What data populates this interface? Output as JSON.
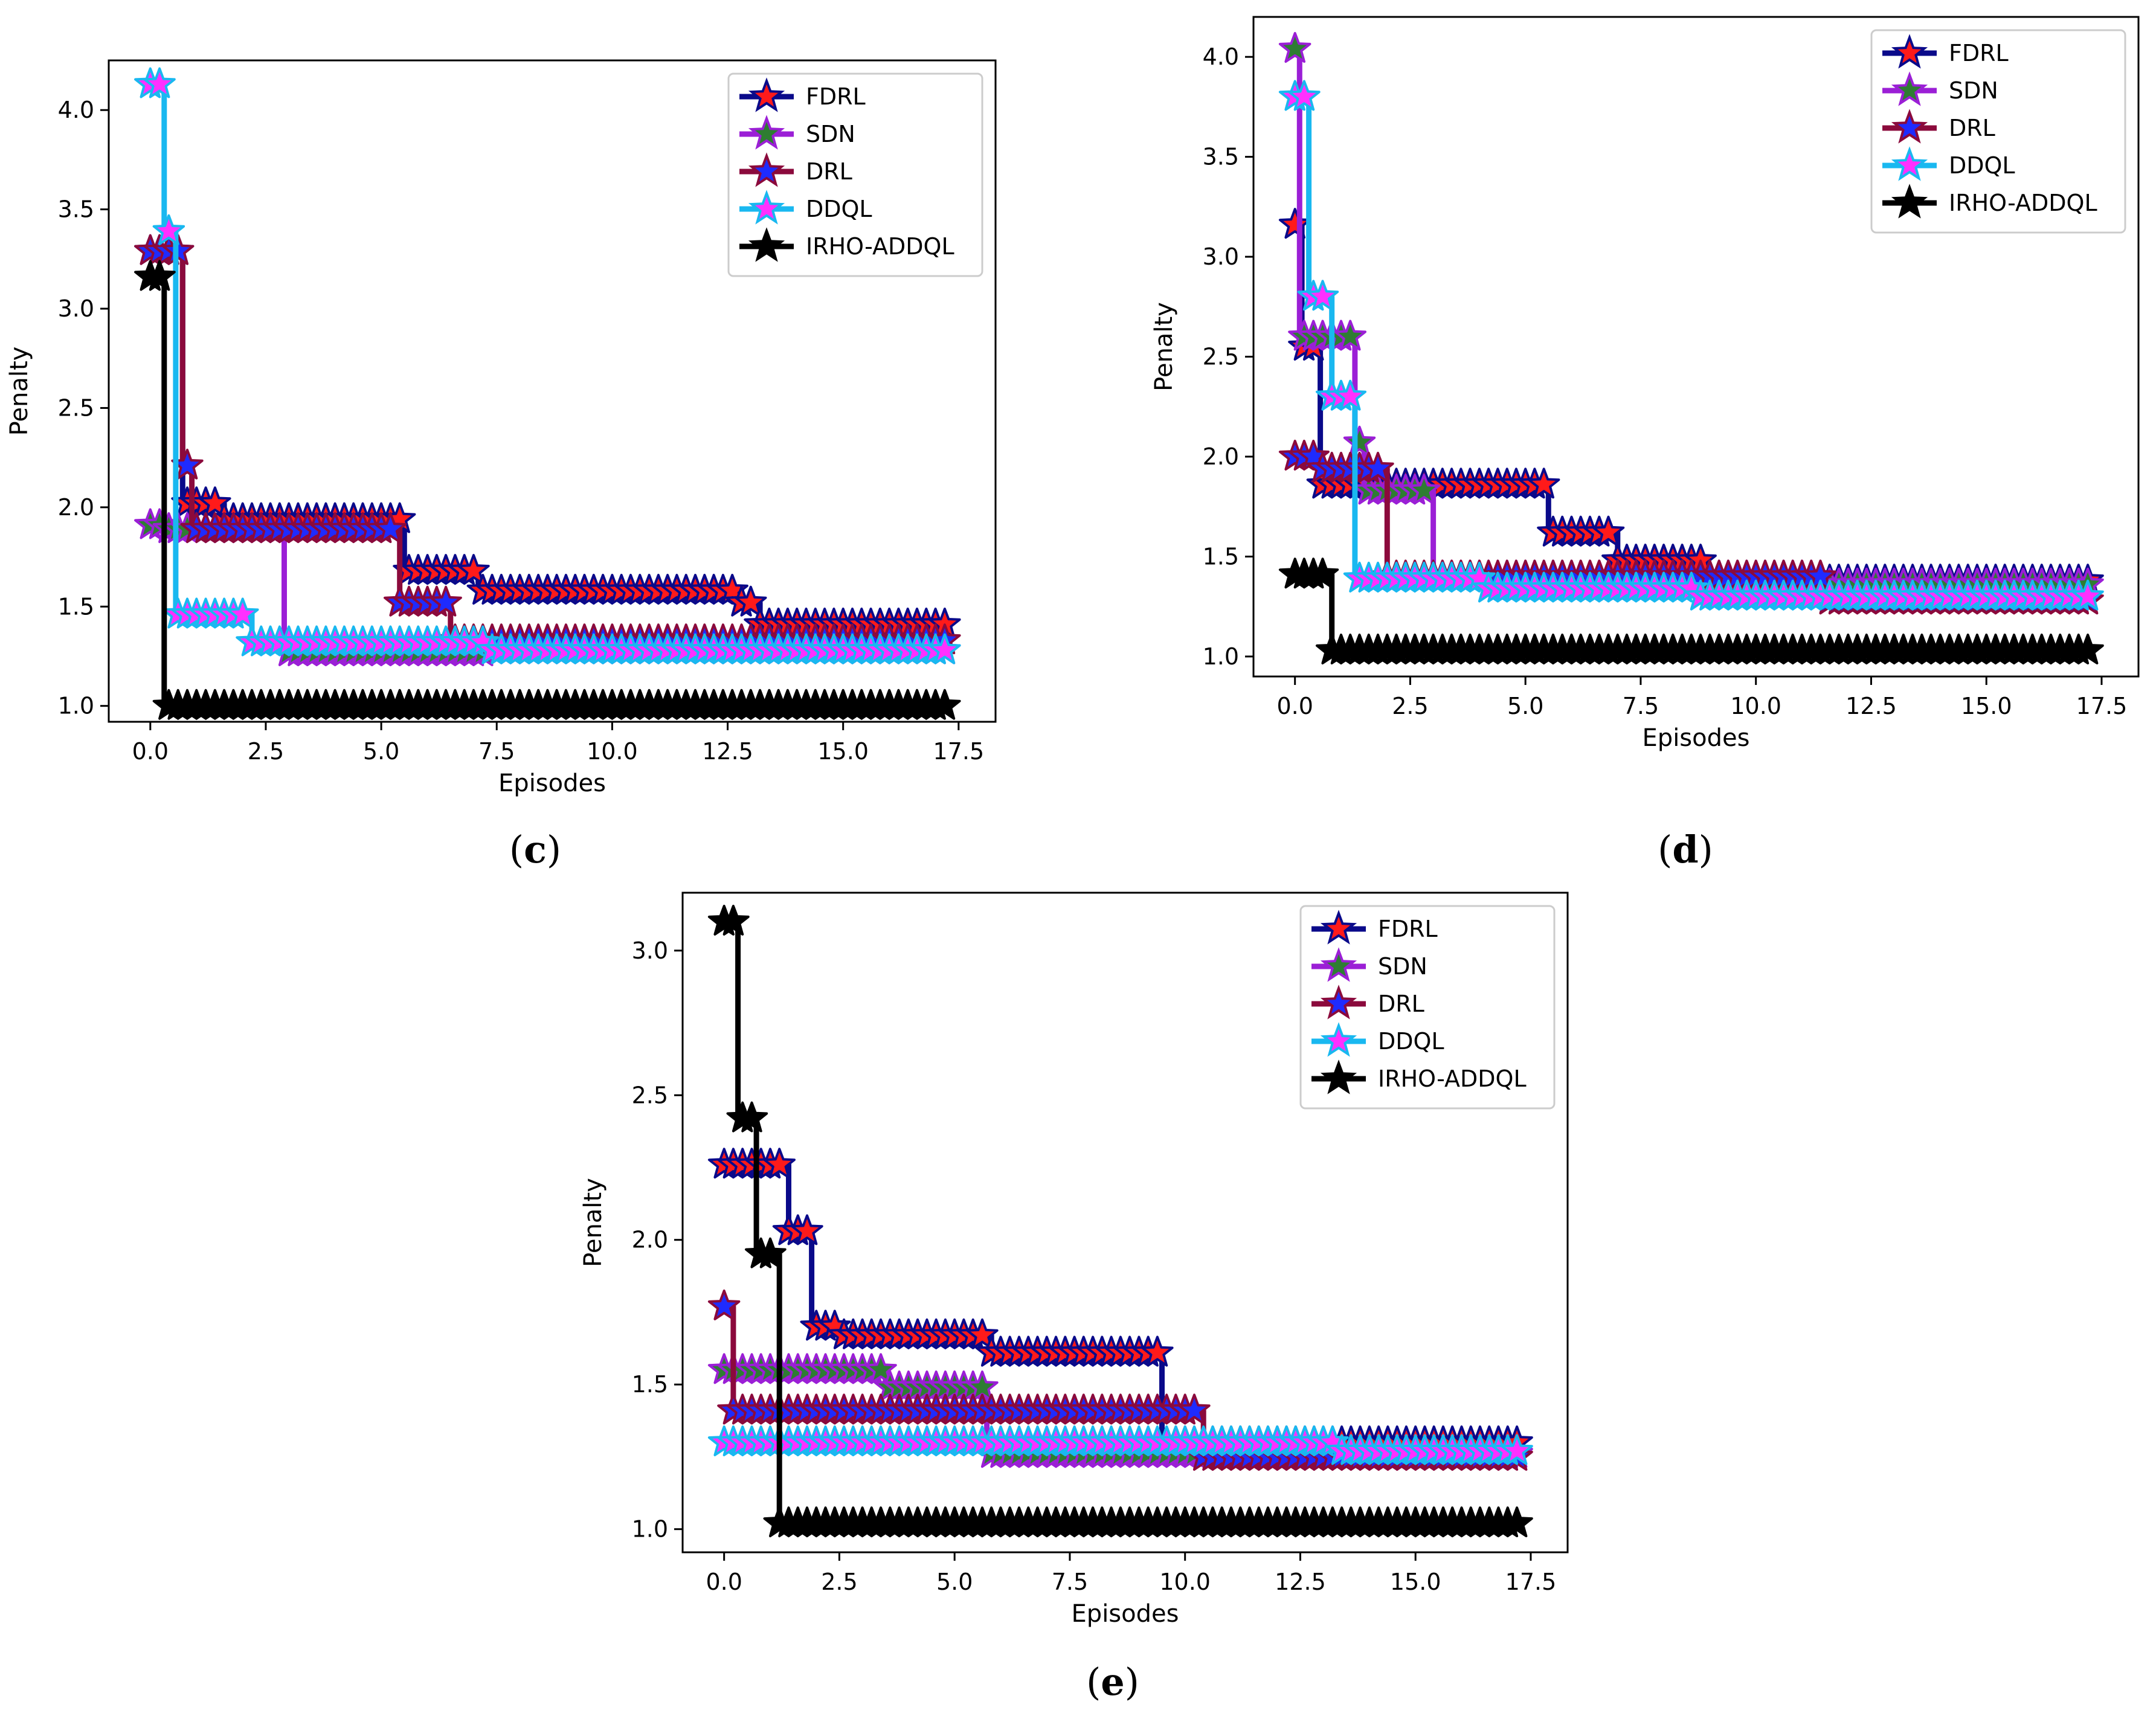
{
  "figure": {
    "captions": {
      "c": {
        "open": "(",
        "letter": "c",
        "close": ")"
      },
      "d": {
        "open": "(",
        "letter": "d",
        "close": ")"
      },
      "e": {
        "open": "(",
        "letter": "e",
        "close": ")"
      }
    }
  },
  "series_style": {
    "FDRL": {
      "line": "#0a0a8a",
      "marker_face": "#ff1a1a",
      "marker_edge": "#0a0a8a"
    },
    "SDN": {
      "line": "#9b1fd6",
      "marker_face": "#2e7d32",
      "marker_edge": "#9b1fd6"
    },
    "DRL": {
      "line": "#8b0a3c",
      "marker_face": "#1f2bff",
      "marker_edge": "#8b0a3c"
    },
    "DDQL": {
      "line": "#19b8f0",
      "marker_face": "#ff30ff",
      "marker_edge": "#19b8f0"
    },
    "IRHO-ADDQL": {
      "line": "#000000",
      "marker_face": "#000000",
      "marker_edge": "#000000"
    }
  },
  "chart_data": [
    {
      "id": "c",
      "type": "line",
      "title": "",
      "xlabel": "Episodes",
      "ylabel": "Penalty",
      "xlim": [
        -0.9,
        18.3
      ],
      "ylim": [
        0.92,
        4.25
      ],
      "xticks": [
        0.0,
        2.5,
        5.0,
        7.5,
        10.0,
        12.5,
        15.0,
        17.5
      ],
      "xtick_labels": [
        "0.0",
        "2.5",
        "5.0",
        "7.5",
        "10.0",
        "12.5",
        "15.0",
        "17.5"
      ],
      "yticks": [
        1.0,
        1.5,
        2.0,
        2.5,
        3.0,
        3.5,
        4.0
      ],
      "ytick_labels": [
        "1.0",
        "1.5",
        "2.0",
        "2.5",
        "3.0",
        "3.5",
        "4.0"
      ],
      "legend": [
        "FDRL",
        "SDN",
        "DRL",
        "DDQL",
        "IRHO-ADDQL"
      ],
      "legend_position": "upper-right",
      "series": [
        {
          "name": "FDRL",
          "steps": [
            [
              0,
              3.29
            ],
            [
              0.7,
              2.02
            ],
            [
              1.6,
              1.94
            ],
            [
              5.5,
              1.68
            ],
            [
              7.1,
              1.58
            ],
            [
              12.8,
              1.52
            ],
            [
              13.2,
              1.41
            ]
          ]
        },
        {
          "name": "SDN",
          "steps": [
            [
              0,
              1.91
            ],
            [
              0.35,
              1.89
            ],
            [
              2.9,
              1.27
            ],
            [
              7.3,
              1.28
            ]
          ]
        },
        {
          "name": "DRL",
          "steps": [
            [
              0,
              3.29
            ],
            [
              0.7,
              2.21
            ],
            [
              0.9,
              1.89
            ],
            [
              5.4,
              1.52
            ],
            [
              6.5,
              1.33
            ]
          ]
        },
        {
          "name": "DDQL",
          "steps": [
            [
              0,
              4.13
            ],
            [
              0.3,
              3.39
            ],
            [
              0.55,
              1.46
            ],
            [
              2.2,
              1.32
            ],
            [
              7.3,
              1.28
            ]
          ]
        },
        {
          "name": "IRHO-ADDQL",
          "steps": [
            [
              0,
              3.16
            ],
            [
              0.3,
              1.0
            ]
          ]
        }
      ],
      "x_end": 17.2
    },
    {
      "id": "d",
      "type": "line",
      "title": "",
      "xlabel": "Episodes",
      "ylabel": "Penalty",
      "xlim": [
        -0.9,
        18.3
      ],
      "ylim": [
        0.9,
        4.2
      ],
      "xticks": [
        0.0,
        2.5,
        5.0,
        7.5,
        10.0,
        12.5,
        15.0,
        17.5
      ],
      "xtick_labels": [
        "0.0",
        "2.5",
        "5.0",
        "7.5",
        "10.0",
        "12.5",
        "15.0",
        "17.5"
      ],
      "yticks": [
        1.0,
        1.5,
        2.0,
        2.5,
        3.0,
        3.5,
        4.0
      ],
      "ytick_labels": [
        "1.0",
        "1.5",
        "2.0",
        "2.5",
        "3.0",
        "3.5",
        "4.0"
      ],
      "legend": [
        "FDRL",
        "SDN",
        "DRL",
        "DDQL",
        "IRHO-ADDQL"
      ],
      "legend_position": "upper-right",
      "series": [
        {
          "name": "FDRL",
          "steps": [
            [
              0,
              3.16
            ],
            [
              0.15,
              2.55
            ],
            [
              0.55,
              1.86
            ],
            [
              5.5,
              1.62
            ],
            [
              7.0,
              1.48
            ],
            [
              8.9,
              1.38
            ]
          ]
        },
        {
          "name": "SDN",
          "steps": [
            [
              0,
              4.04
            ],
            [
              0.1,
              2.6
            ],
            [
              1.3,
              2.07
            ],
            [
              1.5,
              1.83
            ],
            [
              3.0,
              1.4
            ],
            [
              11.5,
              1.36
            ]
          ]
        },
        {
          "name": "DRL",
          "steps": [
            [
              0,
              2.0
            ],
            [
              0.55,
              1.94
            ],
            [
              2.0,
              1.4
            ],
            [
              11.5,
              1.28
            ]
          ]
        },
        {
          "name": "DDQL",
          "steps": [
            [
              0,
              3.8
            ],
            [
              0.3,
              2.8
            ],
            [
              0.8,
              2.3
            ],
            [
              1.3,
              1.39
            ],
            [
              4.2,
              1.34
            ],
            [
              8.7,
              1.3
            ]
          ]
        },
        {
          "name": "IRHO-ADDQL",
          "steps": [
            [
              0,
              1.41
            ],
            [
              0.8,
              1.03
            ]
          ]
        }
      ],
      "x_end": 17.2
    },
    {
      "id": "e",
      "type": "line",
      "title": "",
      "xlabel": "Episodes",
      "ylabel": "Penalty",
      "xlim": [
        -0.9,
        18.3
      ],
      "ylim": [
        0.92,
        3.2
      ],
      "xticks": [
        0.0,
        2.5,
        5.0,
        7.5,
        10.0,
        12.5,
        15.0,
        17.5
      ],
      "xtick_labels": [
        "0.0",
        "2.5",
        "5.0",
        "7.5",
        "10.0",
        "12.5",
        "15.0",
        "17.5"
      ],
      "yticks": [
        1.0,
        1.5,
        2.0,
        2.5,
        3.0
      ],
      "ytick_labels": [
        "1.0",
        "1.5",
        "2.0",
        "2.5",
        "3.0"
      ],
      "legend": [
        "FDRL",
        "SDN",
        "DRL",
        "DDQL",
        "IRHO-ADDQL"
      ],
      "legend_position": "upper-right",
      "series": [
        {
          "name": "FDRL",
          "steps": [
            [
              0,
              2.26
            ],
            [
              1.4,
              2.03
            ],
            [
              1.9,
              1.7
            ],
            [
              2.5,
              1.67
            ],
            [
              5.8,
              1.61
            ],
            [
              9.5,
              1.3
            ]
          ]
        },
        {
          "name": "SDN",
          "steps": [
            [
              0,
              1.55
            ],
            [
              3.5,
              1.49
            ],
            [
              5.7,
              1.26
            ]
          ]
        },
        {
          "name": "DRL",
          "steps": [
            [
              0,
              1.77
            ],
            [
              0.2,
              1.41
            ],
            [
              10.4,
              1.25
            ]
          ]
        },
        {
          "name": "DDQL",
          "steps": [
            [
              0,
              1.3
            ],
            [
              13.4,
              1.27
            ]
          ]
        },
        {
          "name": "IRHO-ADDQL",
          "steps": [
            [
              0,
              3.1
            ],
            [
              0.3,
              2.42
            ],
            [
              0.7,
              1.95
            ],
            [
              1.2,
              1.02
            ]
          ]
        }
      ],
      "x_end": 17.2
    }
  ]
}
